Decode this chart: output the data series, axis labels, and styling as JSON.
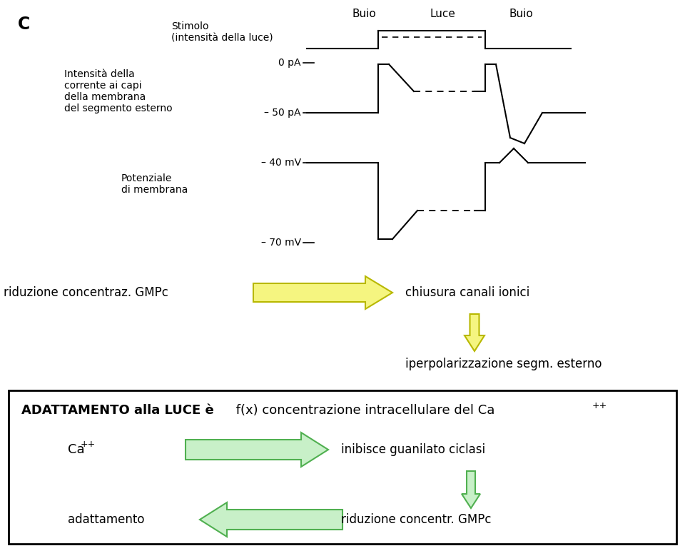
{
  "bg_color": "#ffffff",
  "fig_width": 9.6,
  "fig_height": 7.72,
  "label_c": "C",
  "buio1": "Buio",
  "luce": "Luce",
  "buio2": "Buio",
  "stimolo_label": "Stimolo\n(intensità della luce)",
  "intensita_label": "Intensità della\ncorrente ai capi\ndella membrana\ndel segmento esterno",
  "potenziale_label": "Potenziale\ndi membrana",
  "ref_0pa": "0 pA",
  "ref_50pa": "– 50 pA",
  "ref_40mv": "– 40 mV",
  "ref_70mv": "– 70 mV",
  "arrow1_left_text": "riduzione concentraz. GMPc",
  "arrow1_right_text": "chiusura canali ionici",
  "arrow2_text": "iperpolarizzazione segm. esterno",
  "box_title_bold": "ADATTAMENTO alla LUCE è",
  "box_title_normal": " f(x) concentrazione intracellulare del Ca",
  "box_title_sup": "++",
  "ca_text": "Ca",
  "ca_sup": "++",
  "ca_right_text": "inibisce guanilato ciclasi",
  "ada_left": "adattamento",
  "ada_right_text": "riduzione concentr. GMPc",
  "yellow_fill": "#f5f580",
  "yellow_edge": "#b8b800",
  "green_fill": "#c8f0c8",
  "green_edge": "#50b050",
  "box_edge": "#000000"
}
